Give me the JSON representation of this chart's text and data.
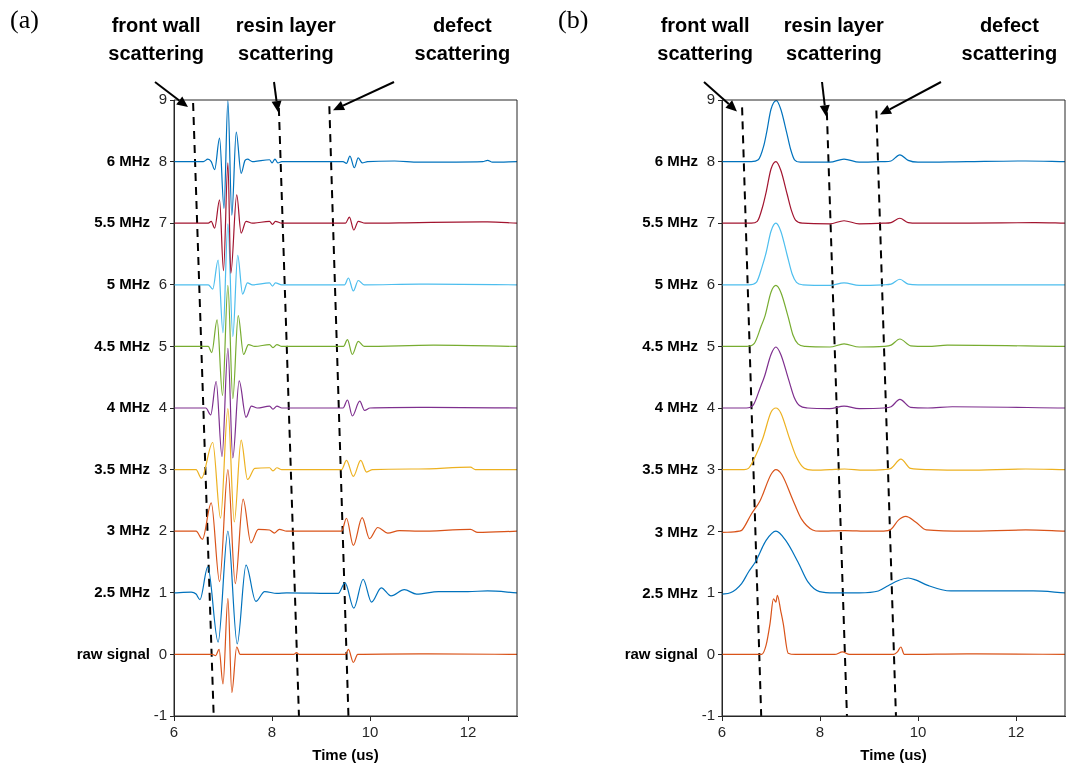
{
  "chart_data": [
    {
      "type": "line",
      "title": "(a)",
      "xlabel": "Time (us)",
      "xlim": [
        6,
        13
      ],
      "xticks": [
        6,
        8,
        10,
        12
      ],
      "ylim": [
        -1,
        9
      ],
      "yticks": [
        -1,
        0,
        1,
        2,
        3,
        4,
        5,
        6,
        7,
        8,
        9
      ],
      "annotations": [
        "front wall scattering",
        "resin layer scattering",
        "defect scattering"
      ],
      "series": [
        {
          "name": "6 MHz",
          "color": "#0072bd",
          "x": [
            6,
            6.6,
            6.69,
            6.76,
            6.83,
            6.93,
            7.02,
            7.1,
            7.18,
            7.27,
            7.37,
            7.45,
            7.5,
            7.6,
            7.95,
            8.0,
            8.06,
            8.12,
            8.2,
            9.45,
            9.52,
            9.59,
            9.68,
            9.76,
            9.84,
            9.95,
            10.5,
            11,
            12.3,
            12.4,
            12.5,
            13
          ],
          "values": [
            8,
            8,
            8.04,
            8,
            7.87,
            8.38,
            7.24,
            8.99,
            7.13,
            8.48,
            7.81,
            8.02,
            8.04,
            8,
            8.03,
            7.98,
            8.04,
            7.98,
            8,
            8,
            7.97,
            8.09,
            7.9,
            8.06,
            7.98,
            8,
            8.01,
            7.99,
            8,
            8.02,
            7.99,
            8
          ]
        },
        {
          "name": "5.5 MHz",
          "color": "#a2142f",
          "x": [
            6,
            6.7,
            6.76,
            6.83,
            6.93,
            7.01,
            7.1,
            7.16,
            7.28,
            7.37,
            7.47,
            7.6,
            7.95,
            8.01,
            8.07,
            8.2,
            9.5,
            9.58,
            9.67,
            9.76,
            9.9,
            11,
            12.4,
            13
          ],
          "values": [
            7,
            7,
            7.03,
            6.92,
            7.38,
            6.23,
            7.98,
            6.19,
            7.46,
            6.84,
            7.03,
            7,
            7.03,
            6.98,
            7.03,
            7,
            7,
            7.1,
            6.89,
            7.03,
            7,
            7.01,
            7.02,
            7
          ]
        },
        {
          "name": "5 MHz",
          "color": "#4dbeee",
          "x": [
            6,
            6.7,
            6.79,
            6.9,
            7.0,
            7.1,
            7.2,
            7.3,
            7.4,
            7.5,
            7.6,
            7.95,
            8.01,
            8.07,
            8.2,
            9.48,
            9.56,
            9.66,
            9.76,
            9.88,
            11,
            13
          ],
          "values": [
            6,
            6,
            5.93,
            6.4,
            5.22,
            6.99,
            5.16,
            6.48,
            5.85,
            6.03,
            6,
            6.03,
            5.98,
            6.03,
            6,
            6,
            6.11,
            5.9,
            6.07,
            6,
            6.01,
            6
          ]
        },
        {
          "name": "4.5 MHz",
          "color": "#77ac30",
          "x": [
            6,
            6.7,
            6.77,
            6.88,
            6.99,
            7.1,
            7.2,
            7.31,
            7.42,
            7.52,
            7.65,
            7.95,
            8.02,
            8.1,
            8.2,
            9.46,
            9.54,
            9.64,
            9.76,
            9.88,
            11.3,
            13
          ],
          "values": [
            5,
            5,
            4.9,
            5.43,
            4.2,
            5.99,
            4.15,
            5.5,
            4.87,
            5.03,
            5,
            5.03,
            4.98,
            5.03,
            5,
            5,
            5.11,
            4.87,
            5.08,
            5,
            5.02,
            5
          ]
        },
        {
          "name": "4 MHz",
          "color": "#7e2f8e",
          "x": [
            6,
            6.65,
            6.75,
            6.86,
            6.98,
            7.1,
            7.2,
            7.33,
            7.47,
            7.58,
            7.7,
            7.95,
            8.02,
            8.1,
            8.2,
            9.45,
            9.54,
            9.64,
            9.79,
            9.89,
            10,
            11,
            13
          ],
          "values": [
            4,
            4,
            3.89,
            4.43,
            3.21,
            4.97,
            3.19,
            4.44,
            3.85,
            4.03,
            4,
            4.03,
            3.98,
            4.03,
            4,
            4,
            4.13,
            3.87,
            4.11,
            3.96,
            4,
            4.01,
            4
          ]
        },
        {
          "name": "3.5 MHz",
          "color": "#edb120",
          "x": [
            6,
            6.45,
            6.56,
            6.79,
            6.95,
            7.1,
            7.23,
            7.37,
            7.5,
            7.65,
            7.95,
            8.02,
            8.1,
            8.2,
            9.42,
            9.52,
            9.66,
            9.81,
            9.93,
            10.05,
            11,
            12.05,
            12.15,
            13
          ],
          "values": [
            3,
            3,
            2.86,
            3.44,
            2.21,
            3.99,
            2.15,
            3.48,
            2.84,
            3.02,
            3.03,
            2.98,
            3.03,
            3,
            3,
            3.15,
            2.89,
            3.15,
            2.96,
            3,
            3.01,
            3.04,
            3,
            3
          ]
        },
        {
          "name": "3 MHz",
          "color": "#d95319",
          "x": [
            6,
            6.45,
            6.58,
            6.76,
            6.93,
            7.1,
            7.25,
            7.41,
            7.57,
            7.72,
            7.95,
            8.05,
            8.15,
            8.3,
            9.42,
            9.52,
            9.66,
            9.84,
            9.99,
            10.16,
            10.36,
            10.6,
            11,
            12.05,
            12.2,
            13
          ],
          "values": [
            2,
            2,
            1.87,
            2.46,
            1.18,
            3.0,
            1.15,
            2.52,
            1.81,
            2.03,
            2.02,
            1.97,
            2.03,
            2,
            2,
            2.21,
            1.77,
            2.22,
            1.88,
            2.06,
            1.97,
            2.01,
            2.0,
            2.03,
            1.98,
            2
          ]
        },
        {
          "name": "2.5 MHz",
          "color": "#0072bd",
          "x": [
            6,
            6.35,
            6.45,
            6.53,
            6.69,
            6.9,
            7.1,
            7.29,
            7.47,
            7.67,
            7.85,
            8.1,
            8.3,
            9.35,
            9.49,
            9.67,
            9.86,
            10.03,
            10.23,
            10.43,
            10.7,
            10.95,
            11.4,
            12.0,
            12.4,
            13
          ],
          "values": [
            1,
            1.01,
            0.98,
            0.89,
            1.42,
            0.2,
            2.0,
            0.17,
            1.45,
            0.86,
            1.02,
            0.99,
            1.0,
            0.99,
            1.16,
            0.75,
            1.22,
            0.85,
            1.08,
            0.95,
            1.05,
            0.98,
            1.02,
            1.02,
            1.03,
            1
          ]
        },
        {
          "name": "raw signal",
          "color": "#d95319",
          "x": [
            6,
            6.78,
            6.85,
            6.92,
            7.0,
            7.1,
            7.18,
            7.28,
            7.35,
            7.5,
            8.45,
            8.5,
            8.55,
            9.5,
            9.56,
            9.66,
            9.75,
            11,
            13
          ],
          "values": [
            0,
            0,
            -0.02,
            0.08,
            -0.48,
            0.91,
            -0.62,
            0.12,
            0,
            0,
            0,
            0.03,
            0,
            0,
            0.08,
            -0.13,
            0,
            0.01,
            0
          ]
        },
        {
          "color": "#000000",
          "line_style": "dashed",
          "x": [
            6.39,
            6.81
          ],
          "values": [
            8.95,
            -1
          ]
        },
        {
          "color": "#000000",
          "line_style": "dashed",
          "x": [
            8.14,
            8.55
          ],
          "values": [
            8.87,
            -1
          ]
        },
        {
          "color": "#000000",
          "line_style": "dashed",
          "x": [
            9.17,
            9.56
          ],
          "values": [
            8.9,
            -1
          ]
        }
      ]
    },
    {
      "type": "line",
      "title": "(b)",
      "xlabel": "Time (us)",
      "xlim": [
        6,
        13
      ],
      "xticks": [
        6,
        8,
        10,
        12
      ],
      "ylim": [
        -1,
        9
      ],
      "yticks": [
        -1,
        0,
        1,
        2,
        3,
        4,
        5,
        6,
        7,
        8,
        9
      ],
      "annotations": [
        "front wall scattering",
        "resin layer scattering",
        "defect scattering"
      ],
      "series": [
        {
          "name": "6 MHz",
          "color": "#0072bd",
          "x": [
            6,
            6.6,
            6.74,
            6.85,
            6.91,
            7.0,
            7.11,
            7.2,
            7.32,
            7.4,
            7.48,
            7.6,
            8.2,
            8.49,
            8.8,
            9.3,
            9.45,
            9.63,
            9.8,
            10,
            11,
            12.2,
            13
          ],
          "values": [
            8,
            8,
            8.03,
            8.25,
            8.47,
            8.85,
            8.99,
            8.85,
            8.47,
            8.2,
            8.03,
            7.99,
            7.99,
            8.04,
            7.99,
            8,
            8.01,
            8.11,
            8.02,
            7.99,
            8,
            8.01,
            8
          ]
        },
        {
          "name": "5.5 MHz",
          "color": "#a2142f",
          "x": [
            6,
            6.6,
            6.72,
            6.84,
            6.9,
            7.0,
            7.1,
            7.2,
            7.33,
            7.42,
            7.5,
            7.65,
            8.2,
            8.49,
            8.8,
            9.3,
            9.45,
            9.63,
            9.8,
            10,
            11,
            12.4,
            13
          ],
          "values": [
            7,
            7,
            7.03,
            7.3,
            7.5,
            7.88,
            8.0,
            7.86,
            7.47,
            7.2,
            7.05,
            7,
            6.99,
            7.04,
            6.99,
            7,
            7.01,
            7.08,
            7.01,
            7,
            7,
            7.01,
            7
          ]
        },
        {
          "name": "5 MHz",
          "color": "#4dbeee",
          "x": [
            6,
            6.55,
            6.7,
            6.82,
            6.9,
            7.0,
            7.1,
            7.2,
            7.33,
            7.43,
            7.52,
            7.65,
            8.2,
            8.49,
            8.8,
            9.3,
            9.45,
            9.63,
            9.8,
            10,
            11,
            13
          ],
          "values": [
            6,
            6,
            6.04,
            6.3,
            6.52,
            6.87,
            7.0,
            6.87,
            6.48,
            6.18,
            6.04,
            6,
            5.99,
            6.03,
            5.99,
            6,
            6.01,
            6.09,
            6.01,
            6,
            6,
            6
          ]
        },
        {
          "name": "4.5 MHz",
          "color": "#77ac30",
          "x": [
            6,
            6.5,
            6.66,
            6.8,
            6.88,
            7.0,
            7.1,
            7.2,
            7.35,
            7.45,
            7.55,
            7.7,
            8.2,
            8.49,
            8.8,
            9.3,
            9.45,
            9.63,
            9.85,
            10.2,
            10.6,
            13
          ],
          "values": [
            5,
            5,
            5.05,
            5.33,
            5.5,
            5.88,
            5.99,
            5.88,
            5.48,
            5.18,
            5.04,
            5,
            4.99,
            5.04,
            4.99,
            5,
            5.02,
            5.12,
            5.01,
            5,
            5.02,
            5
          ]
        },
        {
          "name": "4 MHz",
          "color": "#7e2f8e",
          "x": [
            6,
            6.5,
            6.64,
            6.78,
            6.87,
            7.0,
            7.1,
            7.2,
            7.36,
            7.47,
            7.58,
            7.75,
            8.2,
            8.49,
            8.8,
            9.3,
            9.45,
            9.63,
            9.85,
            10.2,
            10.7,
            13
          ],
          "values": [
            4,
            4,
            4.05,
            4.33,
            4.52,
            4.87,
            4.99,
            4.87,
            4.46,
            4.18,
            4.04,
            4,
            3.99,
            4.03,
            3.99,
            4,
            4.02,
            4.14,
            4.01,
            4,
            4.02,
            4
          ]
        },
        {
          "name": "3.5 MHz",
          "color": "#edb120",
          "x": [
            6,
            6.45,
            6.54,
            6.7,
            6.83,
            7.0,
            7.1,
            7.2,
            7.38,
            7.52,
            7.68,
            7.85,
            8.2,
            8.5,
            8.9,
            9.3,
            9.45,
            9.65,
            9.85,
            10.2,
            11,
            12.2,
            13
          ],
          "values": [
            3,
            3,
            3.02,
            3.25,
            3.5,
            3.93,
            4.0,
            3.92,
            3.5,
            3.2,
            3.02,
            2.99,
            3,
            3.01,
            2.99,
            3,
            3.02,
            3.17,
            3.02,
            3,
            2.99,
            3.01,
            3
          ]
        },
        {
          "name": "3 MHz",
          "color": "#d95319",
          "x": [
            6,
            6.35,
            6.41,
            6.6,
            6.78,
            7.0,
            7.1,
            7.22,
            7.45,
            7.62,
            7.85,
            8.0,
            8.5,
            9.0,
            9.3,
            9.45,
            9.6,
            9.75,
            9.95,
            10.17,
            11,
            12.2,
            13
          ],
          "values": [
            1.98,
            2,
            2.02,
            2.28,
            2.5,
            2.92,
            3.0,
            2.92,
            2.5,
            2.2,
            2.02,
            2,
            2.01,
            2,
            2,
            2.03,
            2.18,
            2.24,
            2.15,
            2.02,
            2,
            2.02,
            2
          ]
        },
        {
          "name": "2.5 MHz",
          "color": "#0072bd",
          "x": [
            6,
            6.17,
            6.4,
            6.55,
            6.68,
            6.9,
            7.1,
            7.3,
            7.55,
            7.75,
            7.99,
            8.3,
            8.8,
            9.19,
            9.4,
            9.6,
            9.8,
            9.95,
            10.2,
            10.67,
            11.5,
            12.35,
            13
          ],
          "values": [
            0.98,
            1.0,
            1.15,
            1.35,
            1.5,
            1.85,
            2.0,
            1.85,
            1.5,
            1.18,
            1.02,
            1.0,
            1.0,
            1.03,
            1.12,
            1.2,
            1.24,
            1.21,
            1.12,
            1.03,
            1.03,
            1.03,
            1.0
          ]
        },
        {
          "name": "raw signal",
          "color": "#d95319",
          "x": [
            6,
            6.81,
            6.9,
            6.98,
            7.05,
            7.1,
            7.13,
            7.2,
            7.25,
            7.35,
            7.5,
            8.3,
            8.46,
            8.6,
            9.5,
            9.58,
            9.65,
            9.72,
            11,
            13
          ],
          "values": [
            0,
            0,
            0.15,
            0.5,
            0.9,
            0.85,
            0.96,
            0.7,
            0.5,
            0.02,
            0,
            0,
            0.04,
            0,
            0,
            0.04,
            0.12,
            0,
            0.01,
            0
          ]
        },
        {
          "color": "#000000",
          "line_style": "dashed",
          "x": [
            6.41,
            6.8
          ],
          "values": [
            8.88,
            -1
          ]
        },
        {
          "color": "#000000",
          "line_style": "dashed",
          "x": [
            8.14,
            8.55
          ],
          "values": [
            8.8,
            -1
          ]
        },
        {
          "color": "#000000",
          "line_style": "dashed",
          "x": [
            9.15,
            9.55
          ],
          "values": [
            8.83,
            -1
          ]
        }
      ]
    }
  ]
}
